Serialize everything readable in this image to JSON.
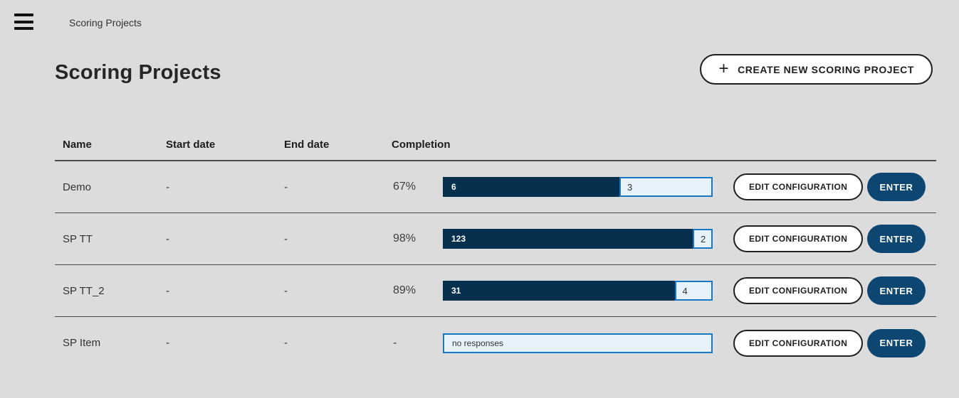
{
  "topbar": {
    "title": "Scoring Projects"
  },
  "header": {
    "title": "Scoring Projects",
    "create_button": {
      "plus": "+",
      "label": "CREATE NEW SCORING PROJECT"
    }
  },
  "table": {
    "columns": [
      "Name",
      "Start date",
      "End date",
      "Completion"
    ],
    "rows": [
      {
        "name": "Demo",
        "start_date": "-",
        "end_date": "-",
        "completion": "67%",
        "bar": {
          "done": 6,
          "pending": 3
        }
      },
      {
        "name": "SP TT",
        "start_date": "-",
        "end_date": "-",
        "completion": "98%",
        "bar": {
          "done": 123,
          "pending": 2
        }
      },
      {
        "name": "SP TT_2",
        "start_date": "-",
        "end_date": "-",
        "completion": "89%",
        "bar": {
          "done": 31,
          "pending": 4
        }
      },
      {
        "name": "SP Item",
        "start_date": "-",
        "end_date": "-",
        "completion": "-",
        "bar": {
          "empty_label": "no responses"
        }
      }
    ],
    "actions": {
      "edit_label": "EDIT CONFIGURATION",
      "enter_label": "ENTER"
    }
  },
  "colors": {
    "page_background": "#dcdcdc",
    "bar_done": "#06304e",
    "bar_remaining_bg": "#e7f2fc",
    "bar_remaining_border": "#1778c4",
    "enter_button": "#0c4671",
    "divider": "#4a4a4a"
  }
}
